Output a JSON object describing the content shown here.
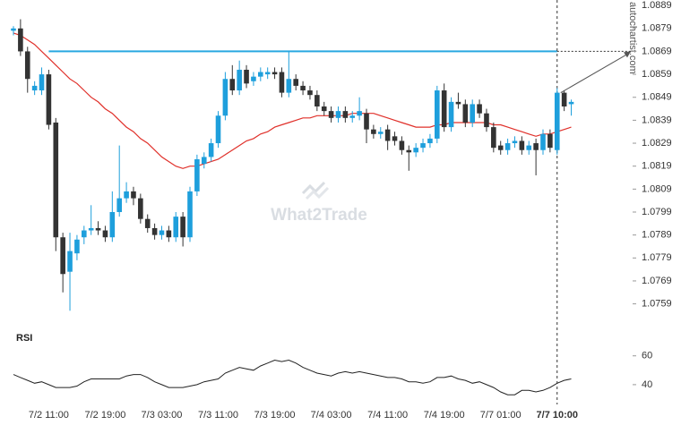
{
  "chart_data": {
    "type": "candlestick",
    "categories": [
      null,
      null,
      null,
      null,
      null,
      "7/2 11:00",
      null,
      null,
      null,
      null,
      null,
      null,
      null,
      "7/2 19:00",
      null,
      null,
      null,
      null,
      null,
      null,
      null,
      "7/3 03:00",
      null,
      null,
      null,
      null,
      null,
      null,
      null,
      "7/3 11:00",
      null,
      null,
      null,
      null,
      null,
      null,
      null,
      "7/3 19:00",
      null,
      null,
      null,
      null,
      null,
      null,
      null,
      "7/4 03:00",
      null,
      null,
      null,
      null,
      null,
      null,
      null,
      "7/4 11:00",
      null,
      null,
      null,
      null,
      null,
      null,
      null,
      "7/4 19:00",
      null,
      null,
      null,
      null,
      null,
      null,
      null,
      "7/7 01:00",
      null,
      null,
      null,
      null,
      null,
      null,
      null,
      "7/7 10:00",
      null,
      null
    ],
    "ohlc": [
      [
        1.0878,
        1.088,
        1.0876,
        1.0879
      ],
      [
        1.0879,
        1.0883,
        1.0867,
        1.0869
      ],
      [
        1.0869,
        1.0871,
        1.0851,
        1.0857
      ],
      [
        1.0852,
        1.0856,
        1.085,
        1.0854
      ],
      [
        1.0852,
        1.0862,
        1.085,
        1.0859
      ],
      [
        1.0859,
        1.0861,
        1.0835,
        1.0837
      ],
      [
        1.0838,
        1.084,
        1.0782,
        1.0788
      ],
      [
        1.0788,
        1.079,
        1.0764,
        1.0772
      ],
      [
        1.0773,
        1.079,
        1.0756,
        1.0782
      ],
      [
        1.0781,
        1.0789,
        1.0778,
        1.0787
      ],
      [
        1.0788,
        1.0793,
        1.0785,
        1.0791
      ],
      [
        1.0791,
        1.0802,
        1.0789,
        1.0792
      ],
      [
        1.0792,
        1.0795,
        1.0789,
        1.0791
      ],
      [
        1.0791,
        1.0793,
        1.0786,
        1.0788
      ],
      [
        1.0788,
        1.0808,
        1.0786,
        1.0799
      ],
      [
        1.0799,
        1.0828,
        1.0797,
        1.0805
      ],
      [
        1.0805,
        1.0812,
        1.0803,
        1.0808
      ],
      [
        1.0808,
        1.081,
        1.0802,
        1.0805
      ],
      [
        1.0805,
        1.0807,
        1.0794,
        1.0796
      ],
      [
        1.0796,
        1.0798,
        1.079,
        1.0792
      ],
      [
        1.0792,
        1.0794,
        1.0787,
        1.0789
      ],
      [
        1.0789,
        1.0793,
        1.0787,
        1.0791
      ],
      [
        1.0791,
        1.0793,
        1.0786,
        1.0788
      ],
      [
        1.0788,
        1.0799,
        1.0786,
        1.0797
      ],
      [
        1.0797,
        1.0799,
        1.0784,
        1.0788
      ],
      [
        1.0788,
        1.081,
        1.0786,
        1.0808
      ],
      [
        1.0808,
        1.0824,
        1.0806,
        1.0822
      ],
      [
        1.082,
        1.0825,
        1.0818,
        1.0823
      ],
      [
        1.0823,
        1.0831,
        1.0821,
        1.0829
      ],
      [
        1.0829,
        1.0843,
        1.0827,
        1.0841
      ],
      [
        1.0841,
        1.086,
        1.0839,
        1.0857
      ],
      [
        1.0857,
        1.0863,
        1.085,
        1.0852
      ],
      [
        1.0852,
        1.0865,
        1.085,
        1.0861
      ],
      [
        1.0861,
        1.0863,
        1.0853,
        1.0855
      ],
      [
        1.0856,
        1.086,
        1.0854,
        1.0858
      ],
      [
        1.0858,
        1.0862,
        1.0856,
        1.086
      ],
      [
        1.0859,
        1.0862,
        1.0857,
        1.086
      ],
      [
        1.086,
        1.0862,
        1.0857,
        1.0859
      ],
      [
        1.086,
        1.0862,
        1.0849,
        1.0851
      ],
      [
        1.0851,
        1.0869,
        1.0849,
        1.0857
      ],
      [
        1.0857,
        1.0859,
        1.0852,
        1.0854
      ],
      [
        1.0854,
        1.0856,
        1.085,
        1.0852
      ],
      [
        1.0852,
        1.0854,
        1.0848,
        1.085
      ],
      [
        1.085,
        1.0852,
        1.0843,
        1.0845
      ],
      [
        1.0845,
        1.0847,
        1.0841,
        1.0843
      ],
      [
        1.0843,
        1.0845,
        1.0838,
        1.084
      ],
      [
        1.084,
        1.0845,
        1.0838,
        1.0843
      ],
      [
        1.0843,
        1.0845,
        1.0838,
        1.084
      ],
      [
        1.084,
        1.0843,
        1.0838,
        1.0841
      ],
      [
        1.0841,
        1.0849,
        1.0839,
        1.0843
      ],
      [
        1.0842,
        1.0844,
        1.0829,
        1.0835
      ],
      [
        1.0835,
        1.0837,
        1.0831,
        1.0833
      ],
      [
        1.0833,
        1.0836,
        1.0831,
        1.0834
      ],
      [
        1.0835,
        1.0837,
        1.0826,
        1.083
      ],
      [
        1.0832,
        1.0834,
        1.0828,
        1.083
      ],
      [
        1.083,
        1.0832,
        1.0824,
        1.0826
      ],
      [
        1.0826,
        1.0828,
        1.0817,
        1.0825
      ],
      [
        1.0825,
        1.0829,
        1.0823,
        1.0827
      ],
      [
        1.0827,
        1.0831,
        1.0825,
        1.0829
      ],
      [
        1.0829,
        1.0833,
        1.0827,
        1.0831
      ],
      [
        1.0831,
        1.0854,
        1.0829,
        1.0852
      ],
      [
        1.0852,
        1.0855,
        1.0834,
        1.0836
      ],
      [
        1.0836,
        1.0849,
        1.0834,
        1.0847
      ],
      [
        1.0847,
        1.0851,
        1.0844,
        1.0846
      ],
      [
        1.0846,
        1.0848,
        1.0836,
        1.0838
      ],
      [
        1.0838,
        1.0848,
        1.0836,
        1.0846
      ],
      [
        1.0846,
        1.0848,
        1.084,
        1.0842
      ],
      [
        1.0842,
        1.0844,
        1.0834,
        1.0836
      ],
      [
        1.0836,
        1.0838,
        1.0825,
        1.0827
      ],
      [
        1.0828,
        1.083,
        1.0824,
        1.0826
      ],
      [
        1.0826,
        1.0831,
        1.0824,
        1.0829
      ],
      [
        1.0829,
        1.0832,
        1.0827,
        1.083
      ],
      [
        1.083,
        1.0832,
        1.0824,
        1.0826
      ],
      [
        1.0826,
        1.083,
        1.0824,
        1.0828
      ],
      [
        1.0829,
        1.0831,
        1.0815,
        1.0826
      ],
      [
        1.0826,
        1.0835,
        1.0824,
        1.0833
      ],
      [
        1.0833,
        1.0835,
        1.0825,
        1.0827
      ],
      [
        1.0826,
        1.0853,
        1.0824,
        1.0851
      ],
      [
        1.0851,
        1.0852,
        1.0843,
        1.0845
      ],
      [
        1.0846,
        1.0848,
        1.0841,
        1.0847
      ]
    ],
    "up_color": "#1e9fdc",
    "down_color": "#333333",
    "moving_average": {
      "color": "#e0302a",
      "values": [
        1.0877,
        1.0876,
        1.0874,
        1.0872,
        1.0869,
        1.0866,
        1.0863,
        1.086,
        1.0857,
        1.0855,
        1.0852,
        1.0849,
        1.0847,
        1.0844,
        1.0842,
        1.0839,
        1.0836,
        1.0834,
        1.0831,
        1.0829,
        1.0826,
        1.0823,
        1.0821,
        1.0819,
        1.0818,
        1.0819,
        1.0819,
        1.082,
        1.0821,
        1.0822,
        1.0824,
        1.0826,
        1.0828,
        1.083,
        1.0831,
        1.0833,
        1.0834,
        1.0836,
        1.0837,
        1.0838,
        1.0839,
        1.084,
        1.084,
        1.0841,
        1.0841,
        1.0841,
        1.0841,
        1.0841,
        1.0842,
        1.0842,
        1.0842,
        1.0842,
        1.0841,
        1.084,
        1.0839,
        1.0838,
        1.0837,
        1.0836,
        1.0836,
        1.0836,
        1.0837,
        1.0837,
        1.0838,
        1.0838,
        1.0838,
        1.0838,
        1.0838,
        1.0838,
        1.0837,
        1.0837,
        1.0836,
        1.0835,
        1.0834,
        1.0833,
        1.0832,
        1.0833,
        1.0833,
        1.0834,
        1.0835,
        1.0836
      ]
    },
    "resistance": {
      "value": 1.0869,
      "color": "#29a8e0"
    },
    "ylim": [
      1.0753,
      1.0891
    ],
    "yticks": [
      1.0759,
      1.0769,
      1.0779,
      1.0789,
      1.0799,
      1.0809,
      1.0819,
      1.0829,
      1.0839,
      1.0849,
      1.0859,
      1.0869,
      1.0879,
      1.0889
    ],
    "rsi": {
      "label": "RSI",
      "color": "#222222",
      "values": [
        47,
        45,
        43,
        41,
        42,
        40,
        38,
        38,
        38,
        39,
        42,
        44,
        44,
        44,
        44,
        44,
        46,
        47,
        47,
        45,
        42,
        40,
        38,
        38,
        38,
        39,
        40,
        42,
        43,
        44,
        48,
        50,
        52,
        51,
        50,
        53,
        55,
        57,
        56,
        57,
        55,
        52,
        50,
        48,
        47,
        46,
        48,
        49,
        48,
        49,
        48,
        47,
        46,
        45,
        45,
        44,
        42,
        42,
        41,
        42,
        45,
        45,
        46,
        44,
        43,
        41,
        42,
        40,
        38,
        35,
        33,
        33,
        36,
        36,
        35,
        36,
        38,
        41,
        43,
        44
      ],
      "ylim": [
        30,
        71
      ],
      "yticks": [
        40,
        60
      ]
    },
    "watermark": "What2Trade",
    "source": "autochartist.com"
  }
}
